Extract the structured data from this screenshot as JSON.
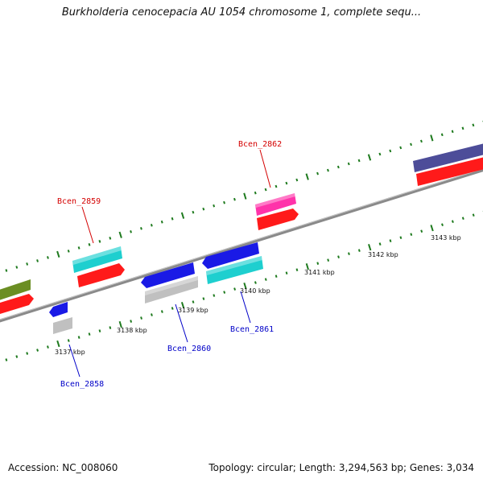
{
  "title": "Burkholderia cenocepacia AU 1054 chromosome 1, complete sequ...",
  "footer": {
    "accession": "Accession: NC_008060",
    "topology": "Topology: circular; Length: 3,294,563 bp; Genes: 3,034"
  },
  "colors": {
    "forward_tick": "#1e7a1e",
    "backbone": "#8a8a8a",
    "forward_label": "#d40000",
    "reverse_label": "#0000c8"
  },
  "kbp_markers": [
    "3137 kbp",
    "3138 kbp",
    "3139 kbp",
    "3140 kbp",
    "3141 kbp",
    "3142 kbp",
    "3143 kbp"
  ],
  "gene_labels": [
    {
      "name": "Bcen_2858",
      "strand": "reverse"
    },
    {
      "name": "Bcen_2859",
      "strand": "forward"
    },
    {
      "name": "Bcen_2860",
      "strand": "reverse"
    },
    {
      "name": "Bcen_2861",
      "strand": "reverse"
    },
    {
      "name": "Bcen_2862",
      "strand": "forward"
    }
  ],
  "feature_colors": {
    "olive": "#6b8e23",
    "red": "#ff1a1a",
    "cyan": "#1ecfcf",
    "blue": "#1a1ae6",
    "gray": "#c0c0c0",
    "magenta": "#ff33aa",
    "purple": "#4d4d99"
  }
}
